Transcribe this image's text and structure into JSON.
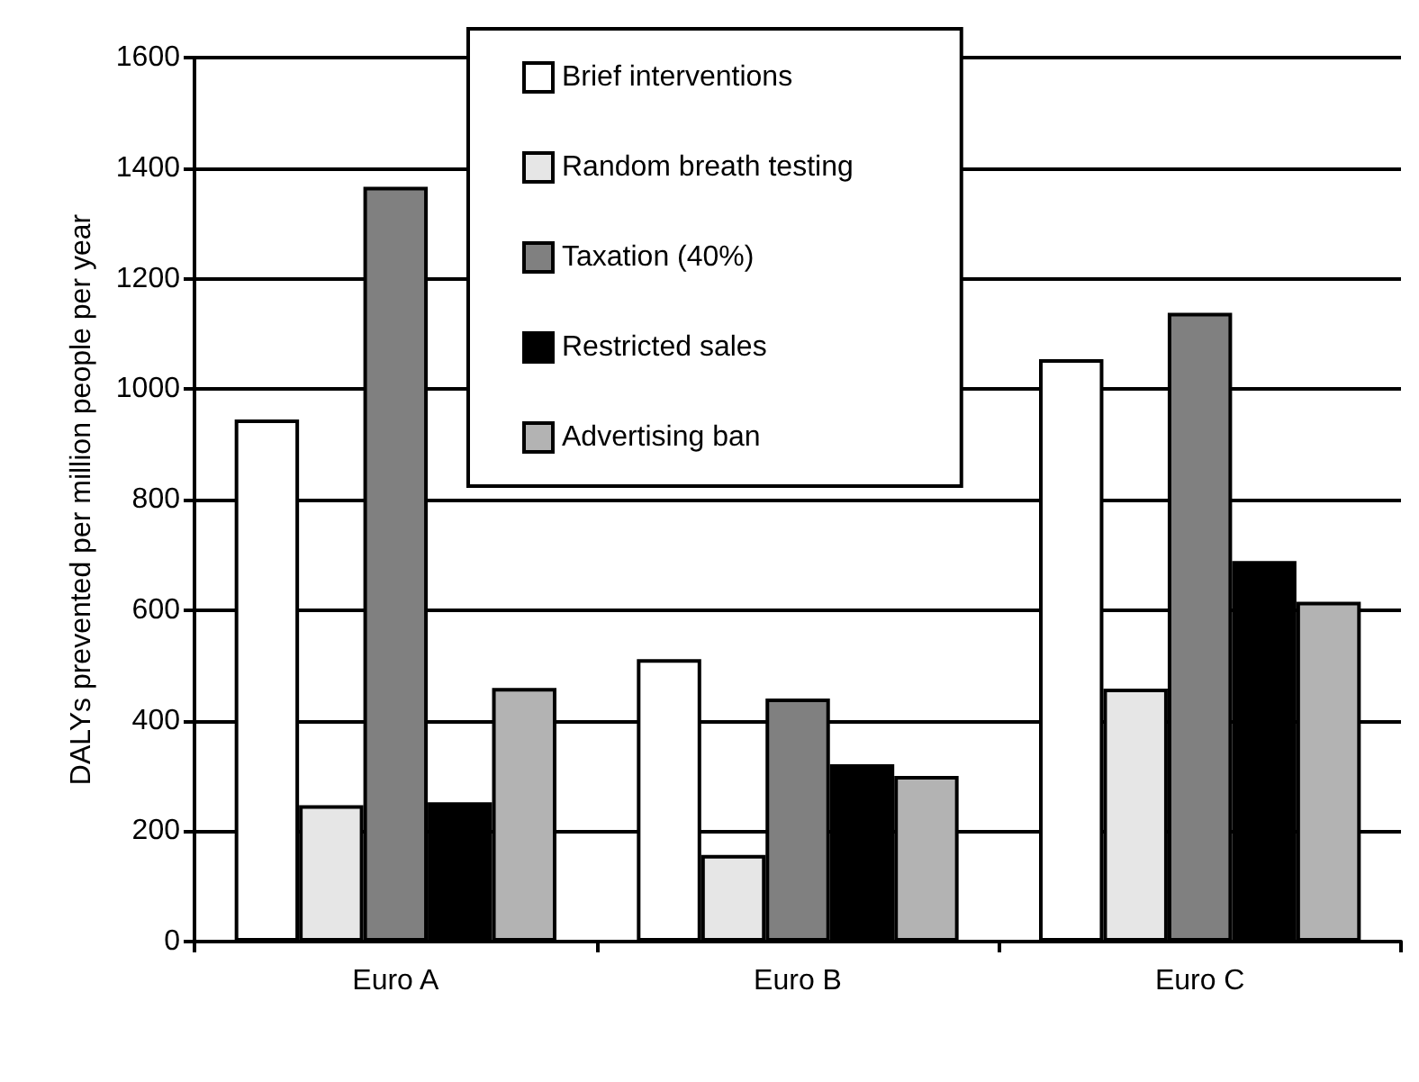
{
  "chart_data": {
    "type": "bar",
    "ylabel": "DALYs prevented per million people per year",
    "categories": [
      "Euro A",
      "Euro B",
      "Euro C"
    ],
    "series": [
      {
        "name": "Brief interventions",
        "color": "#ffffff",
        "values": [
          945,
          511,
          1054
        ]
      },
      {
        "name": "Random breath testing",
        "color": "#e6e6e6",
        "values": [
          247,
          157,
          458
        ]
      },
      {
        "name": "Taxation (40%)",
        "color": "#808080",
        "values": [
          1366,
          440,
          1138
        ]
      },
      {
        "name": "Restricted sales",
        "color": "#000000",
        "values": [
          252,
          321,
          689
        ]
      },
      {
        "name": "Advertising ban",
        "color": "#b3b3b3",
        "values": [
          459,
          300,
          615
        ]
      }
    ],
    "ylim": [
      0,
      1600
    ],
    "yticks": [
      0,
      200,
      400,
      600,
      800,
      1000,
      1200,
      1400,
      1600
    ],
    "grid": "y",
    "legend": "top"
  }
}
